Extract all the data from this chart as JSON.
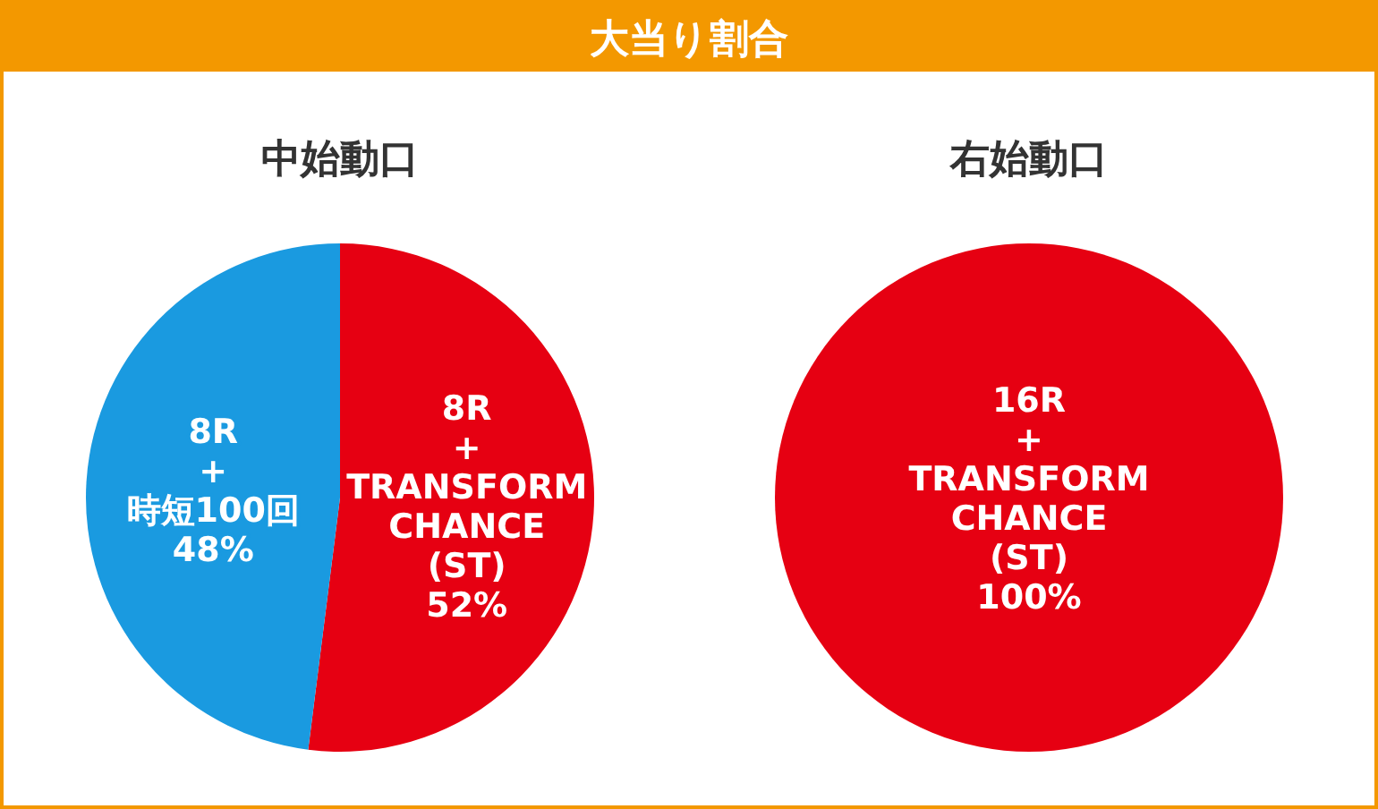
{
  "chart_data": [
    {
      "type": "other",
      "title": "大当り割合"
    },
    {
      "type": "pie",
      "title": "中始動口",
      "categories": [
        "8R\n+\nTRANSFORM\nCHANCE\n(ST)",
        "8R\n+\n時短100回"
      ],
      "values": [
        52,
        48
      ],
      "value_labels": [
        "52%",
        "48%"
      ],
      "colors": [
        "#e60012",
        "#1a9ae0"
      ]
    },
    {
      "type": "pie",
      "title": "右始動口",
      "categories": [
        "16R\n+\nTRANSFORM\nCHANCE\n(ST)"
      ],
      "values": [
        100
      ],
      "value_labels": [
        "100%"
      ],
      "colors": [
        "#e60012"
      ]
    }
  ]
}
